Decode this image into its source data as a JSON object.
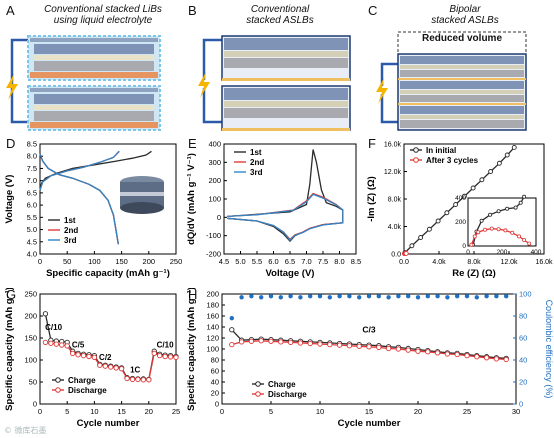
{
  "panels": {
    "A": {
      "label": "A",
      "title_lines": [
        "Conventional stacked LiBs",
        "using liquid electrolyte"
      ]
    },
    "B": {
      "label": "B",
      "title_lines": [
        "Conventional",
        "stacked ASLBs"
      ]
    },
    "C": {
      "label": "C",
      "title_lines": [
        "Bipolar",
        "stacked ASLBs"
      ],
      "reduced_text": "Reduced volume"
    },
    "D": {
      "label": "D"
    },
    "E": {
      "label": "E"
    },
    "F": {
      "label": "F"
    },
    "G": {
      "label": "G"
    },
    "H": {
      "label": "H"
    }
  },
  "watermark": "© 微库石墨",
  "colors": {
    "black": "#2b2b2b",
    "red": "#e03a3a",
    "blue": "#2f86c6",
    "ce_blue": "#1f6fc2",
    "electrode_blue": "#7e93b5",
    "electrode_orange": "#e69560",
    "separator": "#d4d0b8",
    "current": "#2d5aa8",
    "bolt": "#f4b400"
  },
  "chart_data": [
    {
      "panel": "D",
      "type": "line",
      "xlabel": "Specific capacity (mAh g⁻¹)",
      "ylabel": "Voltage (V)",
      "xlim": [
        0,
        250
      ],
      "ylim": [
        4.0,
        8.5
      ],
      "xticks": [
        "0",
        "50",
        "100",
        "150",
        "200",
        "250"
      ],
      "yticks": [
        "4.0",
        "4.5",
        "5.0",
        "5.5",
        "6.0",
        "6.5",
        "7.0",
        "7.5",
        "8.0",
        "8.5"
      ],
      "series": [
        {
          "name": "1st",
          "color": "#2b2b2b",
          "charge": [
            [
              0,
              6.6
            ],
            [
              3,
              6.9
            ],
            [
              10,
              7.1
            ],
            [
              30,
              7.3
            ],
            [
              60,
              7.5
            ],
            [
              100,
              7.65
            ],
            [
              140,
              7.8
            ],
            [
              170,
              7.92
            ],
            [
              195,
              8.05
            ],
            [
              205,
              8.2
            ]
          ],
          "discharge": [
            [
              0,
              8.1
            ],
            [
              5,
              7.8
            ],
            [
              15,
              7.5
            ],
            [
              35,
              7.25
            ],
            [
              60,
              7.1
            ],
            [
              90,
              6.85
            ],
            [
              110,
              6.6
            ],
            [
              125,
              6.2
            ],
            [
              135,
              5.6
            ],
            [
              141,
              4.8
            ],
            [
              144,
              4.4
            ]
          ]
        },
        {
          "name": "2nd",
          "color": "#e03a3a",
          "charge": [
            [
              0,
              6.6
            ],
            [
              5,
              6.95
            ],
            [
              20,
              7.2
            ],
            [
              50,
              7.4
            ],
            [
              80,
              7.55
            ],
            [
              110,
              7.75
            ],
            [
              135,
              7.95
            ],
            [
              146,
              8.2
            ]
          ],
          "discharge": [
            [
              0,
              8.1
            ],
            [
              5,
              7.8
            ],
            [
              15,
              7.5
            ],
            [
              35,
              7.25
            ],
            [
              60,
              7.1
            ],
            [
              90,
              6.85
            ],
            [
              110,
              6.6
            ],
            [
              125,
              6.2
            ],
            [
              135,
              5.6
            ],
            [
              141,
              4.8
            ],
            [
              144,
              4.4
            ]
          ]
        },
        {
          "name": "3rd",
          "color": "#2f86c6",
          "charge": [
            [
              0,
              6.6
            ],
            [
              5,
              6.95
            ],
            [
              20,
              7.2
            ],
            [
              50,
              7.4
            ],
            [
              80,
              7.55
            ],
            [
              110,
              7.75
            ],
            [
              135,
              7.95
            ],
            [
              145,
              8.2
            ]
          ],
          "discharge": [
            [
              0,
              8.1
            ],
            [
              5,
              7.8
            ],
            [
              15,
              7.5
            ],
            [
              35,
              7.25
            ],
            [
              60,
              7.1
            ],
            [
              90,
              6.85
            ],
            [
              110,
              6.6
            ],
            [
              125,
              6.2
            ],
            [
              135,
              5.6
            ],
            [
              141,
              4.8
            ],
            [
              144,
              4.4
            ]
          ]
        }
      ]
    },
    {
      "panel": "E",
      "type": "line",
      "xlabel": "Voltage (V)",
      "ylabel": "dQ/dV (mAh g⁻¹ V⁻¹)",
      "xlim": [
        4.5,
        8.5
      ],
      "ylim": [
        -200,
        400
      ],
      "xticks": [
        "4.5",
        "5.0",
        "5.5",
        "6.0",
        "6.5",
        "7.0",
        "7.5",
        "8.0",
        "8.5"
      ],
      "yticks": [
        "-200",
        "-100",
        "0",
        "100",
        "200",
        "300",
        "400"
      ],
      "series": [
        {
          "name": "1st",
          "color": "#2b2b2b",
          "points": [
            [
              4.6,
              -5
            ],
            [
              5.5,
              -20
            ],
            [
              6.0,
              -50
            ],
            [
              6.3,
              -90
            ],
            [
              6.5,
              -130
            ],
            [
              6.65,
              -100
            ],
            [
              6.9,
              -80
            ],
            [
              7.1,
              -60
            ],
            [
              7.5,
              -40
            ],
            [
              8.1,
              -30
            ],
            [
              8.1,
              40
            ],
            [
              7.9,
              60
            ],
            [
              7.6,
              80
            ],
            [
              7.45,
              150
            ],
            [
              7.3,
              300
            ],
            [
              7.2,
              370
            ],
            [
              7.1,
              180
            ],
            [
              7.0,
              70
            ],
            [
              6.5,
              30
            ],
            [
              5.0,
              10
            ],
            [
              4.6,
              5
            ]
          ]
        },
        {
          "name": "2nd",
          "color": "#e03a3a",
          "points": [
            [
              4.6,
              -5
            ],
            [
              5.5,
              -20
            ],
            [
              6.0,
              -45
            ],
            [
              6.3,
              -80
            ],
            [
              6.5,
              -120
            ],
            [
              6.65,
              -95
            ],
            [
              6.9,
              -80
            ],
            [
              7.1,
              -60
            ],
            [
              7.5,
              -40
            ],
            [
              8.1,
              -30
            ],
            [
              8.1,
              40
            ],
            [
              7.9,
              70
            ],
            [
              7.5,
              110
            ],
            [
              7.2,
              130
            ],
            [
              7.0,
              90
            ],
            [
              6.6,
              40
            ],
            [
              5.5,
              15
            ],
            [
              4.6,
              5
            ]
          ]
        },
        {
          "name": "3rd",
          "color": "#2f86c6",
          "points": [
            [
              4.6,
              -5
            ],
            [
              5.5,
              -20
            ],
            [
              6.0,
              -45
            ],
            [
              6.3,
              -80
            ],
            [
              6.5,
              -125
            ],
            [
              6.65,
              -98
            ],
            [
              6.9,
              -82
            ],
            [
              7.1,
              -62
            ],
            [
              7.5,
              -42
            ],
            [
              8.1,
              -30
            ],
            [
              8.1,
              40
            ],
            [
              7.9,
              68
            ],
            [
              7.5,
              105
            ],
            [
              7.2,
              125
            ],
            [
              7.0,
              85
            ],
            [
              6.6,
              38
            ],
            [
              5.5,
              14
            ],
            [
              4.6,
              5
            ]
          ]
        }
      ]
    },
    {
      "panel": "F",
      "type": "scatter",
      "xlabel": "Re (Z) (Ω)",
      "ylabel": "-Im (Z) (Ω)",
      "xlim": [
        0,
        16000
      ],
      "ylim": [
        0,
        16000
      ],
      "xticks": [
        "0.0",
        "4.0k",
        "8.0k",
        "12.0k",
        "16.0k"
      ],
      "yticks": [
        "0.0",
        "4.0k",
        "8.0k",
        "12.0k",
        "16.0k"
      ],
      "series": [
        {
          "name": "In initial",
          "color": "#2b2b2b",
          "points": [
            [
              100,
              200
            ],
            [
              900,
              1200
            ],
            [
              1900,
              2400
            ],
            [
              2900,
              3600
            ],
            [
              3900,
              4800
            ],
            [
              4900,
              6000
            ],
            [
              5900,
              7200
            ],
            [
              6900,
              8400
            ],
            [
              7900,
              9600
            ],
            [
              8900,
              10800
            ],
            [
              9900,
              12000
            ],
            [
              10900,
              13200
            ],
            [
              11800,
              14400
            ],
            [
              12600,
              15500
            ]
          ]
        },
        {
          "name": "After 3 cycles",
          "color": "#e03a3a",
          "points": [
            [
              50,
              50
            ],
            [
              100,
              100
            ],
            [
              150,
              120
            ],
            [
              200,
              110
            ],
            [
              250,
              80
            ]
          ]
        }
      ],
      "inset": {
        "xlim": [
          0,
          400
        ],
        "ylim": [
          0,
          400
        ],
        "xticks": [
          "0",
          "200",
          "400"
        ],
        "yticks": [
          "0",
          "200",
          "400"
        ],
        "series": [
          {
            "name": "In initial",
            "color": "#2b2b2b",
            "points": [
              [
                30,
                10
              ],
              [
                50,
                120
              ],
              [
                80,
                210
              ],
              [
                130,
                260
              ],
              [
                180,
                290
              ],
              [
                230,
                310
              ],
              [
                280,
                320
              ],
              [
                310,
                360
              ],
              [
                330,
                410
              ]
            ]
          },
          {
            "name": "After 3 cycles",
            "color": "#e03a3a",
            "points": [
              [
                20,
                10
              ],
              [
                40,
                80
              ],
              [
                60,
                115
              ],
              [
                100,
                135
              ],
              [
                140,
                145
              ],
              [
                180,
                140
              ],
              [
                220,
                130
              ],
              [
                260,
                110
              ],
              [
                300,
                80
              ],
              [
                330,
                50
              ],
              [
                360,
                20
              ]
            ]
          }
        ]
      }
    },
    {
      "panel": "G",
      "type": "scatter",
      "xlabel": "Cycle number",
      "ylabel": "Specific capacity (mAh g⁻¹)",
      "xlim": [
        0,
        25
      ],
      "ylim": [
        0,
        250
      ],
      "xticks": [
        "0",
        "5",
        "10",
        "15",
        "20",
        "25"
      ],
      "yticks": [
        "0",
        "50",
        "100",
        "150",
        "200",
        "250"
      ],
      "rate_labels": [
        {
          "text": "C/10",
          "x": 2.5,
          "y": 168
        },
        {
          "text": "C/5",
          "x": 7,
          "y": 128
        },
        {
          "text": "C/2",
          "x": 12,
          "y": 100
        },
        {
          "text": "1C",
          "x": 17.5,
          "y": 72
        },
        {
          "text": "C/10",
          "x": 23,
          "y": 128
        }
      ],
      "series": [
        {
          "name": "Charge",
          "color": "#2b2b2b",
          "values": [
            205,
            145,
            143,
            142,
            140,
            120,
            115,
            113,
            112,
            110,
            90,
            88,
            86,
            84,
            82,
            60,
            58,
            57,
            57,
            56,
            120,
            113,
            111,
            110,
            108
          ]
        },
        {
          "name": "Discharge",
          "color": "#e03a3a",
          "values": [
            140,
            138,
            136,
            134,
            132,
            115,
            112,
            110,
            108,
            106,
            88,
            86,
            84,
            82,
            80,
            58,
            56,
            56,
            55,
            55,
            115,
            110,
            108,
            107,
            106
          ]
        }
      ]
    },
    {
      "panel": "H",
      "type": "scatter",
      "xlabel": "Cycle number",
      "ylabel": "Specific capacity (mAh g⁻¹)",
      "y2label": "Coulombic efficiency (%)",
      "xlim": [
        0,
        30
      ],
      "ylim": [
        0,
        200
      ],
      "y2lim": [
        0,
        100
      ],
      "xticks": [
        "0",
        "5",
        "10",
        "15",
        "20",
        "25",
        "30"
      ],
      "yticks": [
        "0",
        "20",
        "40",
        "60",
        "80",
        "100",
        "120",
        "140",
        "160",
        "180",
        "200"
      ],
      "y2ticks": [
        "0",
        "20",
        "40",
        "60",
        "80",
        "100"
      ],
      "rate_label": {
        "text": "C/3",
        "x": 15,
        "y": 130
      },
      "series": [
        {
          "name": "Charge",
          "color": "#2b2b2b",
          "values": [
            135,
            116,
            117,
            118,
            117,
            116,
            115,
            114,
            113,
            112,
            111,
            110,
            109,
            108,
            107,
            106,
            104,
            103,
            101,
            99,
            97,
            95,
            93,
            92,
            90,
            88,
            86,
            84,
            83
          ]
        },
        {
          "name": "Discharge",
          "color": "#e03a3a",
          "values": [
            108,
            113,
            114,
            115,
            114,
            113,
            112,
            111,
            110,
            109,
            108,
            107,
            106,
            105,
            104,
            103,
            101,
            100,
            98,
            96,
            95,
            93,
            91,
            90,
            88,
            86,
            84,
            82,
            81
          ]
        },
        {
          "name": "Coulombic efficiency",
          "color": "#1f6fc2",
          "axis": "y2",
          "values": [
            78,
            97,
            98,
            97,
            98,
            97,
            98,
            97,
            98,
            98,
            97,
            98,
            98,
            97,
            98,
            98,
            97,
            98,
            98,
            97,
            98,
            98,
            97,
            98,
            98,
            97,
            98,
            98,
            98
          ]
        }
      ]
    }
  ]
}
